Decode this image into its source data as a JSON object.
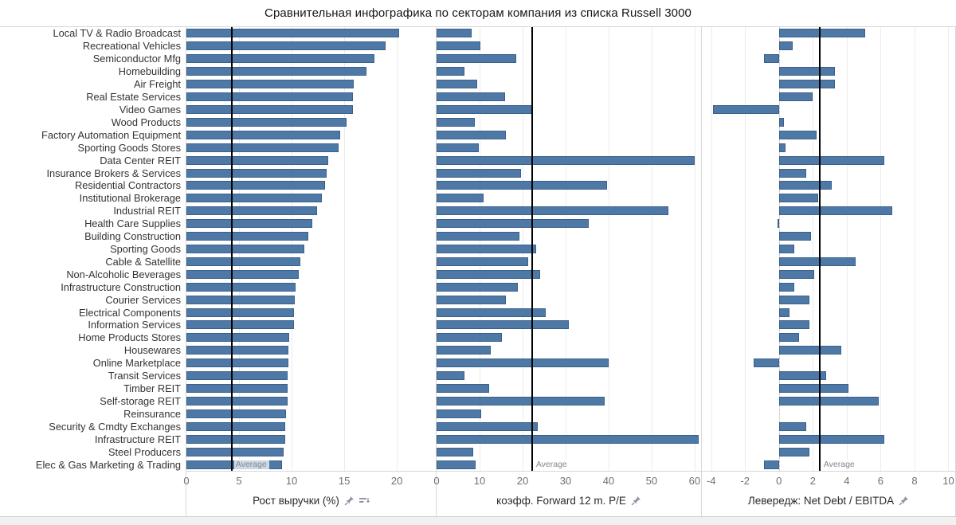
{
  "title": "Сравнительная инфографика по секторам компания из списка Russell 3000",
  "bar_color": "#4e79a7",
  "reference_line_color": "#000000",
  "average_label": "Average",
  "chart_data": {
    "type": "bar",
    "orientation": "horizontal",
    "title": "Сравнительная инфографика по секторам компания из списка Russell 3000",
    "grid": true,
    "legend_position": "none",
    "categories": [
      "Local TV & Radio Broadcast",
      "Recreational Vehicles",
      "Semiconductor Mfg",
      "Homebuilding",
      "Air Freight",
      "Real Estate Services",
      "Video Games",
      "Wood Products",
      "Factory Automation Equipment",
      "Sporting Goods Stores",
      "Data Center REIT",
      "Insurance Brokers & Services",
      "Residential Contractors",
      "Institutional Brokerage",
      "Industrial REIT",
      "Health Care Supplies",
      "Building Construction",
      "Sporting Goods",
      "Cable & Satellite",
      "Non-Alcoholic Beverages",
      "Infrastructure Construction",
      "Courier Services",
      "Electrical Components",
      "Information Services",
      "Home Products Stores",
      "Housewares",
      "Online Marketplace",
      "Transit Services",
      "Timber REIT",
      "Self-storage REIT",
      "Reinsurance",
      "Security & Cmdty Exchanges",
      "Infrastructure REIT",
      "Steel Producers",
      "Elec & Gas Marketing & Trading"
    ],
    "series": [
      {
        "name": "Рост выручки (%)",
        "values": [
          20.2,
          18.9,
          17.9,
          17.1,
          15.9,
          15.8,
          15.8,
          15.2,
          14.6,
          14.5,
          13.5,
          13.3,
          13.2,
          12.9,
          12.4,
          12.0,
          11.6,
          11.2,
          10.8,
          10.7,
          10.4,
          10.3,
          10.25,
          10.2,
          9.8,
          9.7,
          9.7,
          9.6,
          9.6,
          9.6,
          9.5,
          9.4,
          9.4,
          9.2,
          9.1
        ],
        "average": 4.3,
        "axis": {
          "min": 0,
          "max": 23.7,
          "ticks": [
            0,
            5,
            10,
            15,
            20
          ]
        }
      },
      {
        "name": "коэфф. Forward 12 m. P/E",
        "values": [
          8.2,
          10.2,
          18.6,
          6.5,
          9.4,
          16.0,
          22.5,
          8.9,
          16.2,
          9.9,
          60.0,
          19.7,
          39.6,
          11.0,
          53.9,
          35.3,
          19.3,
          23.2,
          21.3,
          24.0,
          18.9,
          16.2,
          25.3,
          30.7,
          15.1,
          12.6,
          40.0,
          6.5,
          12.3,
          39.0,
          10.4,
          23.6,
          61.0,
          8.5,
          9.0
        ],
        "average": 22.2,
        "axis": {
          "min": 0,
          "max": 61.5,
          "ticks": [
            0,
            10,
            20,
            30,
            40,
            50,
            60
          ]
        }
      },
      {
        "name": "Левередж: Net Debt / EBITDA",
        "values": [
          5.1,
          0.8,
          -0.9,
          3.3,
          3.3,
          2.0,
          -3.9,
          0.3,
          2.2,
          0.4,
          6.2,
          1.6,
          3.1,
          2.3,
          6.7,
          -0.1,
          1.9,
          0.9,
          4.5,
          2.1,
          0.9,
          1.8,
          0.6,
          1.8,
          1.2,
          3.7,
          -1.5,
          2.8,
          4.1,
          5.9,
          0.0,
          1.6,
          6.2,
          1.8,
          -0.9
        ],
        "average": 2.4,
        "axis": {
          "min": -4.55,
          "max": 10.4,
          "ticks": [
            -4,
            -2,
            0,
            2,
            4,
            6,
            8,
            10
          ]
        }
      }
    ]
  },
  "panels": [
    {
      "axis_title": "Рост выручки (%)"
    },
    {
      "axis_title": "коэфф. Forward 12 m. P/E"
    },
    {
      "axis_title": "Левередж: Net Debt / EBITDA"
    }
  ]
}
